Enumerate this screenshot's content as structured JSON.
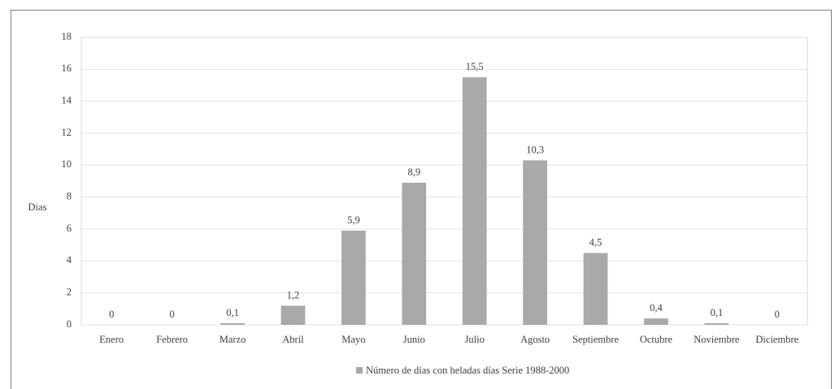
{
  "chart_data": {
    "type": "bar",
    "y_label": "Dias",
    "categories": [
      "Enero",
      "Febrero",
      "Marzo",
      "Abril",
      "Mayo",
      "Junio",
      "Julio",
      "Agosto",
      "Septiembre",
      "Octubre",
      "Noviembre",
      "Diciembre"
    ],
    "series": [
      {
        "name": "Número de días con heladas días Serie 1988-2000",
        "color": "#a9a9a9",
        "values": [
          0,
          0,
          0.1,
          1.2,
          5.9,
          8.9,
          15.5,
          10.3,
          4.5,
          0.4,
          0.1,
          0
        ],
        "value_labels": [
          "0",
          "0",
          "0,1",
          "1,2",
          "5,9",
          "8,9",
          "15,5",
          "10,3",
          "4,5",
          "0,4",
          "0,1",
          "0"
        ]
      }
    ],
    "ylim": [
      0,
      18
    ],
    "yticks": [
      0,
      2,
      4,
      6,
      8,
      10,
      12,
      14,
      16,
      18
    ],
    "grid": true,
    "legend": "bottom"
  }
}
